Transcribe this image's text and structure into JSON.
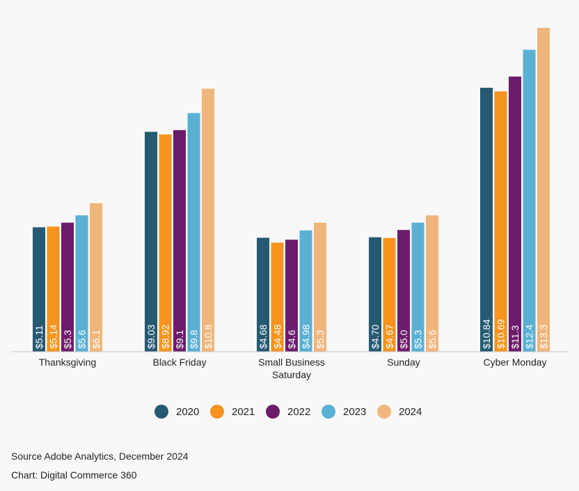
{
  "chart_data": {
    "type": "bar",
    "categories": [
      "Thanksgiving",
      "Black Friday",
      "Small Business Saturday",
      "Sunday",
      "Cyber Monday"
    ],
    "series": [
      {
        "name": "2020",
        "color": "#265a72",
        "values": [
          5.11,
          9.03,
          4.68,
          4.7,
          10.84
        ],
        "labels": [
          "$5.11",
          "$9.03",
          "$4.68",
          "$4.70",
          "$10.84"
        ]
      },
      {
        "name": "2021",
        "color": "#f7931e",
        "values": [
          5.14,
          8.92,
          4.48,
          4.67,
          10.69
        ],
        "labels": [
          "$5.14",
          "$8.92",
          "$4.48",
          "$4.67",
          "$10.69"
        ]
      },
      {
        "name": "2022",
        "color": "#6b1d6b",
        "values": [
          5.3,
          9.1,
          4.6,
          5.0,
          11.3
        ],
        "labels": [
          "$5.3",
          "$9.1",
          "$4.6",
          "$5.0",
          "$11.3"
        ]
      },
      {
        "name": "2023",
        "color": "#5ab0d3",
        "values": [
          5.6,
          9.8,
          4.98,
          5.3,
          12.4
        ],
        "labels": [
          "$5.6",
          "$9.8",
          "$4.98",
          "$5.3",
          "$12.4"
        ]
      },
      {
        "name": "2024",
        "color": "#f0b57b",
        "values": [
          6.1,
          10.8,
          5.3,
          5.6,
          13.3
        ],
        "labels": [
          "$6.1",
          "$10.8",
          "$5.3",
          "$5.6",
          "$13.3"
        ]
      }
    ],
    "ylim": [
      0,
      13.3
    ],
    "grid": false,
    "legend_position": "bottom"
  },
  "footer": {
    "source": "Source Adobe Analytics, December 2024",
    "credit": "Chart: Digital Commerce 360"
  }
}
